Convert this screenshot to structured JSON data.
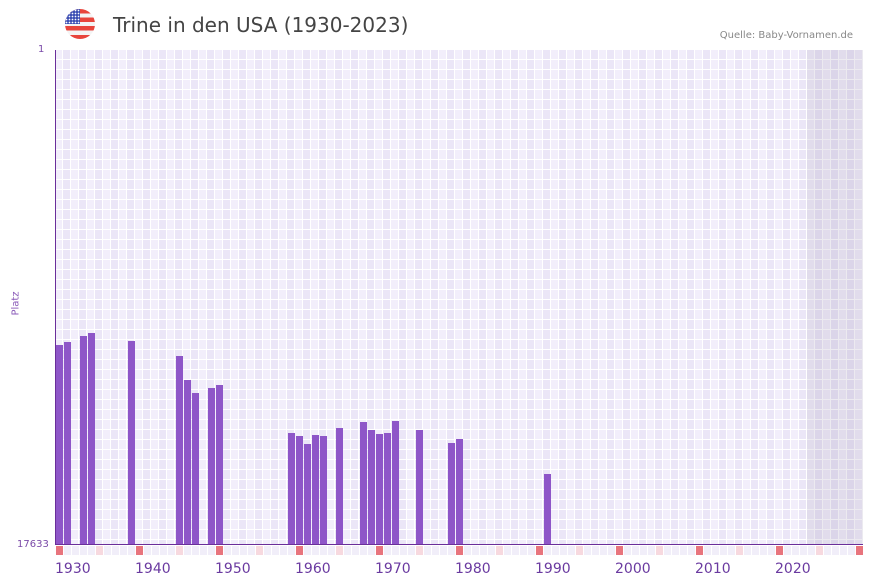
{
  "header": {
    "flag_icon": "us-flag-icon",
    "title": "Trine in den USA (1930-2023)",
    "source": "Quelle: Baby-Vornamen.de"
  },
  "axes": {
    "y_top_label": "1",
    "y_bottom_label": "17633",
    "y_axis_title": "Platz",
    "x_labels": [
      "1930",
      "1940",
      "1950",
      "1960",
      "1970",
      "1980",
      "1990",
      "2000",
      "2010",
      "2020"
    ]
  },
  "colors": {
    "bar": "#8e56c8",
    "axis": "#6a2e9a",
    "decade_marker": "#e8747d",
    "half_decade_marker": "#f7d9df"
  },
  "chart_data": {
    "type": "bar",
    "title": "Trine in den USA (1930-2023)",
    "xlabel": "",
    "ylabel": "Platz",
    "ylim": [
      17633,
      1
    ],
    "y_inverted": true,
    "x_range": [
      1930,
      2030
    ],
    "data_end_year": 2023,
    "grid": true,
    "categories": [
      1930,
      1931,
      1933,
      1934,
      1939,
      1945,
      1946,
      1947,
      1949,
      1950,
      1959,
      1960,
      1961,
      1962,
      1963,
      1965,
      1968,
      1969,
      1970,
      1971,
      1972,
      1975,
      1979,
      1980,
      1991
    ],
    "values": [
      10509,
      10402,
      10189,
      10082,
      10367,
      10901,
      11756,
      12219,
      12041,
      11934,
      13644,
      13751,
      14035,
      13715,
      13751,
      13466,
      13252,
      13537,
      13680,
      13644,
      13217,
      13537,
      14000,
      13857,
      15104
    ]
  }
}
